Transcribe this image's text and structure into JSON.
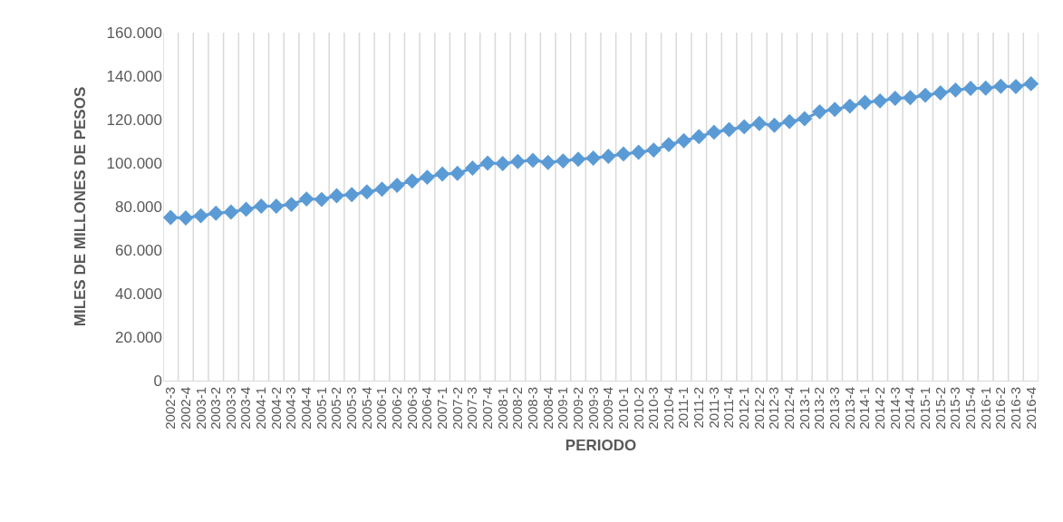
{
  "chart_data": {
    "type": "line",
    "xlabel": "PERIODO",
    "ylabel": "MILES DE MILLONES DE PESOS",
    "categories": [
      "2002-3",
      "2002-4",
      "2003-1",
      "2003-2",
      "2003-3",
      "2003-4",
      "2004-1",
      "2004-2",
      "2004-3",
      "2004-4",
      "2005-1",
      "2005-2",
      "2005-3",
      "2005-4",
      "2006-1",
      "2006-2",
      "2006-3",
      "2006-4",
      "2007-1",
      "2007-2",
      "2007-3",
      "2007-4",
      "2008-1",
      "2008-2",
      "2008-3",
      "2008-4",
      "2009-1",
      "2009-2",
      "2009-3",
      "2009-4",
      "2010-1",
      "2010-2",
      "2010-3",
      "2010-4",
      "2011-1",
      "2011-2",
      "2011-3",
      "2011-4",
      "2012-1",
      "2012-2",
      "2012-3",
      "2012-4",
      "2013-1",
      "2013-2",
      "2013-3",
      "2013-4",
      "2014-1",
      "2014-2",
      "2014-3",
      "2014-4",
      "2015-1",
      "2015-2",
      "2015-3",
      "2015-4",
      "2016-1",
      "2016-2",
      "2016-3",
      "2016-4"
    ],
    "series": [
      {
        "color": "#5b9bd5",
        "values": [
          75000,
          74800,
          75800,
          77000,
          77500,
          78800,
          80200,
          80200,
          81000,
          83500,
          83300,
          85000,
          85500,
          86800,
          88000,
          89800,
          91800,
          93500,
          95000,
          95300,
          97700,
          100000,
          99800,
          100700,
          101300,
          100300,
          101000,
          101800,
          102300,
          103100,
          104200,
          105000,
          106000,
          108500,
          110300,
          112200,
          114200,
          115400,
          116700,
          118200,
          117400,
          119100,
          120400,
          123600,
          124700,
          126200,
          127900,
          128600,
          129800,
          130100,
          131200,
          132300,
          133600,
          134400,
          134500,
          135300,
          135200,
          136500
        ]
      }
    ],
    "ylim": [
      0,
      160000
    ],
    "yticks": [
      {
        "value": 0,
        "label": "0"
      },
      {
        "value": 20000,
        "label": "20.000"
      },
      {
        "value": 40000,
        "label": "40.000"
      },
      {
        "value": 60000,
        "label": "60.000"
      },
      {
        "value": 80000,
        "label": "80.000"
      },
      {
        "value": 100000,
        "label": "100.000"
      },
      {
        "value": 120000,
        "label": "120.000"
      },
      {
        "value": 140000,
        "label": "140.000"
      },
      {
        "value": 160000,
        "label": "160.000"
      }
    ],
    "grid": "x",
    "marker": "diamond",
    "line_style": "solid"
  }
}
